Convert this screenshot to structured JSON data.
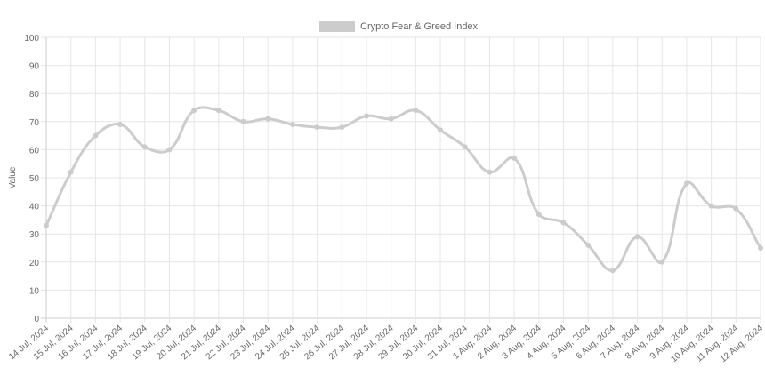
{
  "chart_data": {
    "type": "line",
    "legend": {
      "label": "Crypto Fear & Greed Index",
      "position": "top",
      "color": "#cccccc"
    },
    "ylabel": "Value",
    "xlabel": "",
    "ylim": [
      0,
      100
    ],
    "yticks": [
      0,
      10,
      20,
      30,
      40,
      50,
      60,
      70,
      80,
      90,
      100
    ],
    "grid": true,
    "line_color": "#cccccc",
    "categories": [
      "14 Jul, 2024",
      "15 Jul, 2024",
      "16 Jul, 2024",
      "17 Jul, 2024",
      "18 Jul, 2024",
      "19 Jul, 2024",
      "20 Jul, 2024",
      "21 Jul, 2024",
      "22 Jul, 2024",
      "23 Jul, 2024",
      "24 Jul, 2024",
      "25 Jul, 2024",
      "26 Jul, 2024",
      "27 Jul, 2024",
      "28 Jul, 2024",
      "29 Jul, 2024",
      "30 Jul, 2024",
      "31 Jul, 2024",
      "1 Aug, 2024",
      "2 Aug, 2024",
      "3 Aug, 2024",
      "4 Aug, 2024",
      "5 Aug, 2024",
      "6 Aug, 2024",
      "7 Aug, 2024",
      "8 Aug, 2024",
      "9 Aug, 2024",
      "10 Aug, 2024",
      "11 Aug, 2024",
      "12 Aug, 2024"
    ],
    "series": [
      {
        "name": "Crypto Fear & Greed Index",
        "values": [
          33,
          52,
          65,
          69,
          61,
          60,
          74,
          74,
          70,
          71,
          69,
          68,
          68,
          72,
          71,
          74,
          67,
          61,
          52,
          57,
          37,
          34,
          26,
          17,
          29,
          20,
          48,
          40,
          39,
          25
        ]
      }
    ]
  }
}
